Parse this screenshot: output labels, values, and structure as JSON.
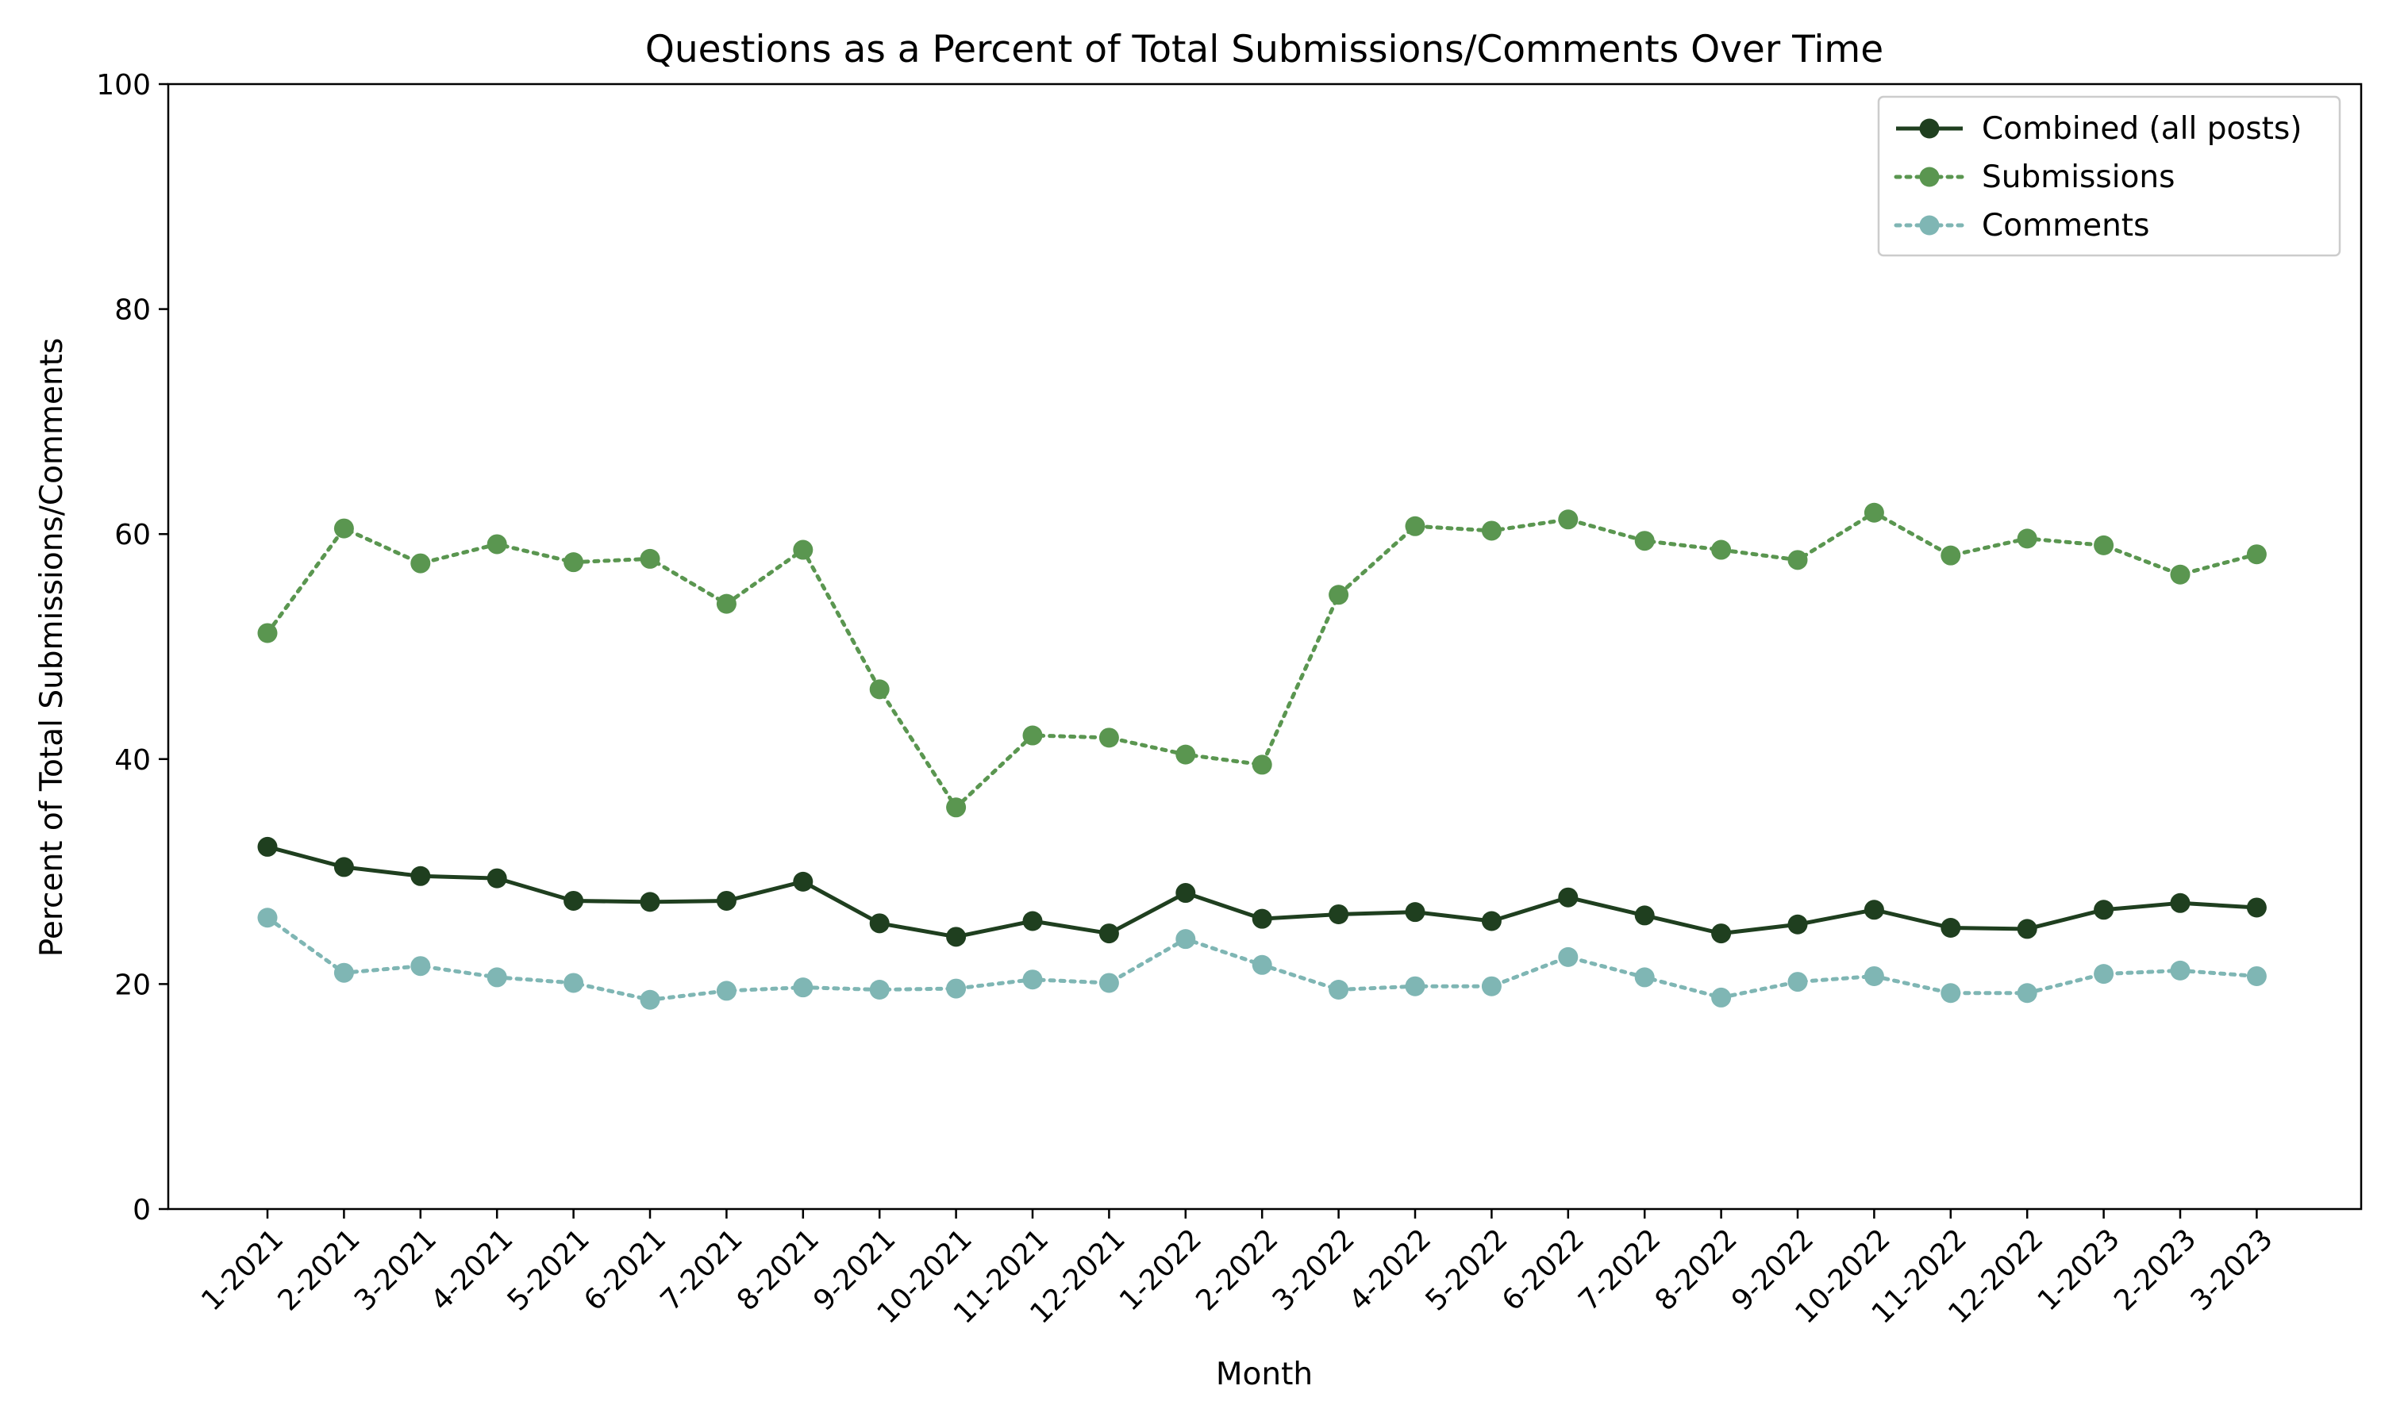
{
  "chart_data": {
    "type": "line",
    "title": "Questions as a Percent of Total Submissions/Comments Over Time",
    "xlabel": "Month",
    "ylabel": "Percent of Total Submissions/Comments",
    "ylim": [
      0,
      100
    ],
    "yticks": [
      0,
      20,
      40,
      60,
      80,
      100
    ],
    "grid": false,
    "legend_position": "top-right",
    "categories": [
      "1-2021",
      "2-2021",
      "3-2021",
      "4-2021",
      "5-2021",
      "6-2021",
      "7-2021",
      "8-2021",
      "9-2021",
      "10-2021",
      "11-2021",
      "12-2021",
      "1-2022",
      "2-2022",
      "3-2022",
      "4-2022",
      "5-2022",
      "6-2022",
      "7-2022",
      "8-2022",
      "9-2022",
      "10-2022",
      "11-2022",
      "12-2022",
      "1-2023",
      "2-2023",
      "3-2023"
    ],
    "series": [
      {
        "name": "Combined (all posts)",
        "color": "#1f3f1f",
        "line_style": "solid",
        "values": [
          32.2,
          30.4,
          29.6,
          29.4,
          27.4,
          27.3,
          27.4,
          29.1,
          25.4,
          24.2,
          25.6,
          24.5,
          28.1,
          25.8,
          26.2,
          26.4,
          25.6,
          27.7,
          26.1,
          24.5,
          25.3,
          26.6,
          25.0,
          24.9,
          26.6,
          27.2,
          26.8
        ]
      },
      {
        "name": "Submissions",
        "color": "#5a9650",
        "line_style": "dotted",
        "values": [
          51.2,
          60.5,
          57.4,
          59.1,
          57.5,
          57.8,
          53.8,
          58.6,
          46.2,
          35.7,
          42.1,
          41.9,
          40.4,
          39.5,
          54.6,
          60.7,
          60.3,
          61.3,
          59.4,
          58.6,
          57.7,
          61.9,
          58.1,
          59.6,
          59.0,
          56.4,
          58.2
        ]
      },
      {
        "name": "Comments",
        "color": "#7fb6b4",
        "line_style": "dotted",
        "values": [
          25.9,
          21.0,
          21.6,
          20.6,
          20.1,
          18.6,
          19.4,
          19.7,
          19.5,
          19.6,
          20.4,
          20.1,
          24.0,
          21.7,
          19.5,
          19.8,
          19.8,
          22.4,
          20.6,
          18.8,
          20.2,
          20.7,
          19.2,
          19.2,
          20.9,
          21.2,
          20.7
        ]
      }
    ]
  }
}
